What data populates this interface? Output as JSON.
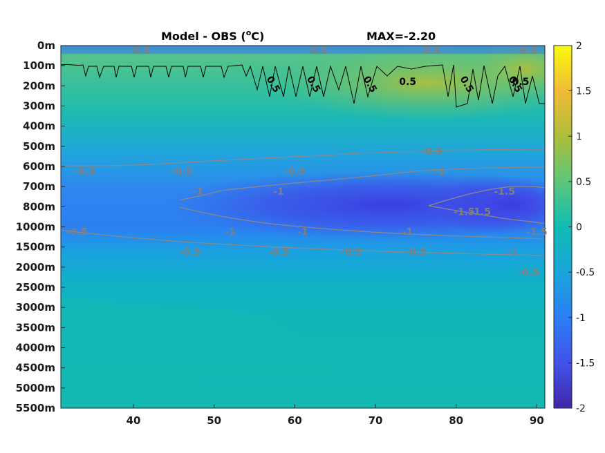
{
  "chart_data": {
    "type": "heatmap",
    "title": "Model - OBS (",
    "title_sup": "o",
    "title_suffix": "C)",
    "max_label": "MAX=-2.20",
    "colormap": "parula",
    "clim": [
      -2,
      2
    ],
    "colorbar_ticks": [
      "2",
      "1.5",
      "1",
      "0.5",
      "0",
      "-0.5",
      "-1",
      "-1.5",
      "-2"
    ],
    "colorbar_values": [
      2,
      1.5,
      1,
      0.5,
      0,
      -0.5,
      -1,
      -1.5,
      -2
    ],
    "xlim": [
      31,
      91
    ],
    "x_ticks": [
      "40",
      "50",
      "60",
      "70",
      "80",
      "90"
    ],
    "x_values": [
      40,
      50,
      60,
      70,
      80,
      90
    ],
    "y_ticks": [
      "0m",
      "100m",
      "200m",
      "300m",
      "400m",
      "500m",
      "600m",
      "700m",
      "800m",
      "1000m",
      "1500m",
      "2000m",
      "2500m",
      "3000m",
      "3500m",
      "4000m",
      "4500m",
      "5000m",
      "5500m"
    ],
    "contour_labels": [
      {
        "text": "0.5",
        "style": "dark",
        "x": 74,
        "y": "100m"
      },
      {
        "text": "0.5",
        "style": "dark",
        "x": 88,
        "y": "100m"
      },
      {
        "text": "0.5",
        "style": "dark",
        "x": 57,
        "y": "200m"
      },
      {
        "text": "0.5",
        "style": "dark",
        "x": 62,
        "y": "200m"
      },
      {
        "text": "0.5",
        "style": "dark",
        "x": 69,
        "y": "200m"
      },
      {
        "text": "0.5",
        "style": "dark",
        "x": 81,
        "y": "200m"
      },
      {
        "text": "0.5",
        "style": "dark",
        "x": 87,
        "y": "200m"
      },
      {
        "text": "0.5",
        "style": "grey",
        "x": 41,
        "y": "0m"
      },
      {
        "text": "0.5",
        "style": "grey",
        "x": 63,
        "y": "0m"
      },
      {
        "text": "0.5",
        "style": "grey",
        "x": 77,
        "y": "0m"
      },
      {
        "text": "0.5",
        "style": "grey",
        "x": 89,
        "y": "0m"
      },
      {
        "text": "-0.5",
        "style": "grey",
        "x": 34,
        "y": "600m"
      },
      {
        "text": "-0.5",
        "style": "grey",
        "x": 46,
        "y": "600m"
      },
      {
        "text": "-0.5",
        "style": "grey",
        "x": 60,
        "y": "600m"
      },
      {
        "text": "-0.5",
        "style": "grey",
        "x": 77,
        "y": "500m"
      },
      {
        "text": "-1",
        "style": "grey",
        "x": 48,
        "y": "700m"
      },
      {
        "text": "-1",
        "style": "grey",
        "x": 58,
        "y": "700m"
      },
      {
        "text": "-1",
        "style": "grey",
        "x": 78,
        "y": "600m"
      },
      {
        "text": "-1.5",
        "style": "grey",
        "x": 86,
        "y": "700m"
      },
      {
        "text": "-1.5",
        "style": "grey",
        "x": 81,
        "y": "800m"
      },
      {
        "text": "-1.5",
        "style": "grey",
        "x": 83,
        "y": "800m"
      },
      {
        "text": "-1.5",
        "style": "grey",
        "x": 90,
        "y": "1000m"
      },
      {
        "text": "-1",
        "style": "grey",
        "x": 52,
        "y": "1000m"
      },
      {
        "text": "-1",
        "style": "grey",
        "x": 61,
        "y": "1000m"
      },
      {
        "text": "-1",
        "style": "grey",
        "x": 74,
        "y": "1000m"
      },
      {
        "text": "-1",
        "style": "grey",
        "x": 87,
        "y": "1500m"
      },
      {
        "text": "-0.5",
        "style": "grey",
        "x": 33,
        "y": "1000m"
      },
      {
        "text": "-0.5",
        "style": "grey",
        "x": 47,
        "y": "1500m"
      },
      {
        "text": "-0.5",
        "style": "grey",
        "x": 58,
        "y": "1500m"
      },
      {
        "text": "-0.5",
        "style": "grey",
        "x": 67,
        "y": "1500m"
      },
      {
        "text": "-0.5",
        "style": "grey",
        "x": 75,
        "y": "1500m"
      },
      {
        "text": "-0.5",
        "style": "grey",
        "x": 89,
        "y": "2000m"
      }
    ],
    "contour_levels": [
      0.5,
      -0.5,
      -1,
      -1.5
    ]
  }
}
